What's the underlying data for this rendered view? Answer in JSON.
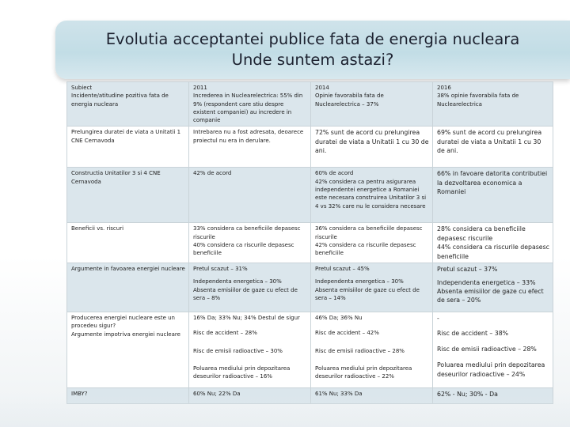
{
  "title": {
    "line1": "Evolutia acceptantei publice fata de energia nucleara",
    "line2": "Unde suntem astazi?"
  },
  "rows": [
    {
      "c1": [
        "Subiect",
        "Incidente/atitudine pozitiva fata de energia nucleara"
      ],
      "c2": [
        "2011",
        "Increderea in Nuclearelectrica: 55% din 9% (respondent care stiu despre existent companiei) au incredere in companie"
      ],
      "c3": [
        "2014",
        "Opinie favorabila fata de Nuclearelectrica – 37%"
      ],
      "c4": [
        "2016",
        "38% opinie favorabila fata de Nuclearelectrica"
      ]
    },
    {
      "c1": [
        "Prelungirea duratei de viata a Unitatii 1 CNE Cernavoda"
      ],
      "c2": [
        "Intrebarea nu a fost adresata, deoarece proiectul nu era in derulare."
      ],
      "c3": [
        "72% sunt de acord cu prelungirea duratei de viata a Unitatii 1 cu 30 de ani."
      ],
      "c4": [
        "69% sunt de acord cu prelungirea duratei de viata a Unitatii 1 cu 30 de ani."
      ]
    },
    {
      "c1": [
        "Constructia Unitatilor 3 si 4 CNE Cernavoda"
      ],
      "c2": [
        "42% de acord"
      ],
      "c3": [
        "60% de acord",
        "42% considera ca pentru asigurarea independentei energetice a Romaniei este necesara construirea Unitatilor 3 si 4 vs 32% care nu le considera necesare"
      ],
      "c4": [
        "66% in favoare datorita contributiei la dezvoltarea economica a Romaniei"
      ]
    },
    {
      "c1": [
        "Beneficii vs. riscuri"
      ],
      "c2": [
        "33% considera ca beneficiile depasesc riscurile",
        "40% considera ca riscurile depasesc beneficiile"
      ],
      "c3": [
        "36% considera ca beneficiile depasesc riscurile",
        "42% considera ca riscurile depasesc beneficiile"
      ],
      "c4": [
        "28% considera ca beneficiile depasesc riscurile",
        "44% considera ca riscurile depasesc beneficiile"
      ]
    },
    {
      "c1": [
        "Argumente in favoarea energiei nucleare"
      ],
      "c2": [
        "Pretul scazut – 31%",
        "",
        "Independenta energetica – 30%",
        "Absenta emisiilor de gaze cu efect de sera – 8%"
      ],
      "c3": [
        "Pretul scazut – 45%",
        "",
        "Independenta energetica – 30%",
        "Absenta emisiilor de gaze cu efect de sera – 14%"
      ],
      "c4": [
        "Pretul scazut – 37%",
        "",
        "Independenta energetica – 33%",
        "Absenta emisiilor de gaze cu efect de sera – 20%"
      ]
    },
    {
      "c1": [
        "Producerea energiei nucleare este un procedeu sigur?",
        "Argumente impotriva energiei nucleare"
      ],
      "c2": [
        "16% Da; 33% Nu; 34% Destul de sigur",
        "",
        "Risc de accident – 28%",
        "",
        "Risc de emisii radioactive – 30%",
        "",
        "Poluarea mediului prin depozitarea deseurilor radioactive – 16%"
      ],
      "c3": [
        "46% Da; 36% Nu",
        "",
        "Risc de accident – 42%",
        "",
        "Risc de emisii radioactive – 28%",
        "",
        "Poluarea mediului prin depozitarea deseurilor radioactive – 22%"
      ],
      "c4": [
        "-",
        "",
        "Risc de accident – 38%",
        "",
        "Risc de emisii radioactive – 28%",
        "",
        "Poluarea mediului prin depozitarea deseurilor radioactive – 24%"
      ]
    },
    {
      "c1": [
        "IMBY?"
      ],
      "c2": [
        "60% Nu; 22% Da"
      ],
      "c3": [
        "61% Nu; 33% Da"
      ],
      "c4": [
        "62% - Nu; 30% - Da"
      ]
    }
  ]
}
